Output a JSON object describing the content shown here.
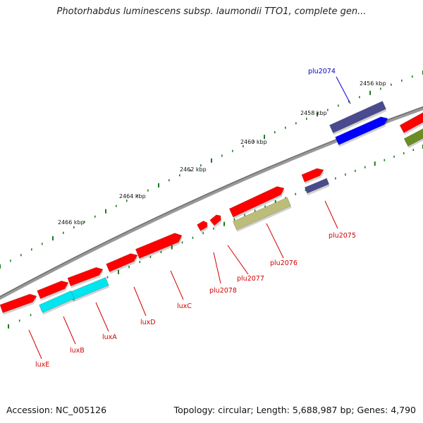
{
  "title": "Photorhabdus luminescens subsp. laumondii TTO1, complete gen...",
  "footer": {
    "accession": "Accession: NC_005126",
    "summary": "Topology: circular; Length: 5,688,987 bp; Genes: 4,790"
  },
  "colors": {
    "backbone": "#8a8a8a",
    "tick": "#1e7a1e",
    "cds": "#ff0000",
    "cds_lux": "#00e5ee",
    "cds_blue": "#0000ff",
    "cds_navy": "#4a4a8e",
    "cds_olive": "#bdbd7a",
    "cds_green": "#6b8e23",
    "label_red": "#d40000",
    "label_blue": "#0000cc"
  },
  "scale_labels": [
    {
      "kbp": 2456,
      "text": "2456 kbp"
    },
    {
      "kbp": 2458,
      "text": "2458 kbp"
    },
    {
      "kbp": 2460,
      "text": "2460 kbp"
    },
    {
      "kbp": 2462,
      "text": "2462 kbp"
    },
    {
      "kbp": 2464,
      "text": "2464 kbp"
    },
    {
      "kbp": 2466,
      "text": "2466 kbp"
    }
  ],
  "genes": [
    {
      "name": "plu2074",
      "color": "blue"
    },
    {
      "name": "plu2075",
      "color": "red"
    },
    {
      "name": "plu2076",
      "color": "red"
    },
    {
      "name": "plu2077",
      "color": "red"
    },
    {
      "name": "plu2078",
      "color": "red"
    },
    {
      "name": "luxC",
      "color": "red"
    },
    {
      "name": "luxD",
      "color": "red"
    },
    {
      "name": "luxA",
      "color": "red"
    },
    {
      "name": "luxB",
      "color": "red"
    },
    {
      "name": "luxE",
      "color": "red"
    }
  ]
}
